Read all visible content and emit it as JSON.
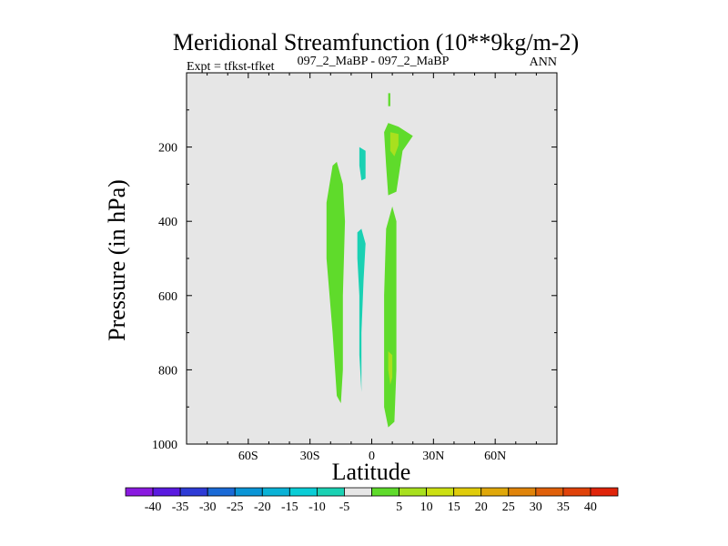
{
  "chart_data": {
    "type": "heatmap",
    "title": "Meridional Streamfunction (10**9kg/m-2)",
    "left_subtitle": "Expt = tfkst-tfket",
    "center_subtitle": "097_2_MaBP - 097_2_MaBP",
    "right_subtitle": "ANN",
    "xlabel": "Latitude",
    "ylabel": "Pressure (in hPa)",
    "xlim": [
      -90,
      90
    ],
    "ylim": [
      1000,
      0
    ],
    "x_ticks": [
      {
        "value": -60,
        "label": "60S"
      },
      {
        "value": -30,
        "label": "30S"
      },
      {
        "value": 0,
        "label": "0"
      },
      {
        "value": 30,
        "label": "30N"
      },
      {
        "value": 60,
        "label": "60N"
      }
    ],
    "y_ticks": [
      {
        "value": 200,
        "label": "200"
      },
      {
        "value": 400,
        "label": "400"
      },
      {
        "value": 600,
        "label": "600"
      },
      {
        "value": 800,
        "label": "800"
      },
      {
        "value": 1000,
        "label": "1000"
      }
    ],
    "background_color": "#e6e6e6",
    "regions": [
      {
        "level": 5,
        "color": "#5fdb2b",
        "points": [
          [
            -19,
            250
          ],
          [
            -17,
            240
          ],
          [
            -14,
            300
          ],
          [
            -13,
            400
          ],
          [
            -14,
            600
          ],
          [
            -14,
            800
          ],
          [
            -15,
            890
          ],
          [
            -17,
            870
          ],
          [
            -19,
            700
          ],
          [
            -22,
            500
          ],
          [
            -22,
            350
          ]
        ]
      },
      {
        "level": 5,
        "color": "#5fdb2b",
        "points": [
          [
            8,
            135
          ],
          [
            13,
            145
          ],
          [
            20,
            170
          ],
          [
            15,
            210
          ],
          [
            12,
            320
          ],
          [
            8,
            330
          ],
          [
            7,
            250
          ],
          [
            6,
            160
          ]
        ]
      },
      {
        "level": 5,
        "color": "#5fdb2b",
        "points": [
          [
            8,
            55
          ],
          [
            9,
            55
          ],
          [
            9,
            90
          ],
          [
            8,
            90
          ]
        ]
      },
      {
        "level": 5,
        "color": "#5fdb2b",
        "points": [
          [
            10,
            360
          ],
          [
            12,
            400
          ],
          [
            12,
            600
          ],
          [
            12,
            800
          ],
          [
            11,
            940
          ],
          [
            8,
            955
          ],
          [
            6,
            900
          ],
          [
            6,
            600
          ],
          [
            7,
            420
          ]
        ]
      },
      {
        "level": 10,
        "color": "#a8e01e",
        "points": [
          [
            9,
            160
          ],
          [
            13,
            165
          ],
          [
            13,
            195
          ],
          [
            11,
            225
          ],
          [
            9,
            210
          ]
        ]
      },
      {
        "level": 10,
        "color": "#a8e01e",
        "points": [
          [
            8,
            750
          ],
          [
            10,
            760
          ],
          [
            10,
            820
          ],
          [
            9,
            840
          ],
          [
            8,
            800
          ]
        ]
      },
      {
        "level": -5,
        "color": "#1ad1b3",
        "points": [
          [
            -6,
            200
          ],
          [
            -3,
            210
          ],
          [
            -3,
            285
          ],
          [
            -5,
            290
          ],
          [
            -6,
            250
          ]
        ]
      },
      {
        "level": -5,
        "color": "#1ad1b3",
        "points": [
          [
            -7,
            430
          ],
          [
            -5,
            420
          ],
          [
            -3,
            460
          ],
          [
            -4,
            560
          ],
          [
            -5,
            700
          ],
          [
            -5,
            860
          ],
          [
            -6,
            760
          ],
          [
            -6,
            600
          ],
          [
            -7,
            500
          ]
        ]
      }
    ],
    "colorbar": {
      "colors": [
        "#8a1ae0",
        "#5a1ae0",
        "#2e3bd6",
        "#1a6ad6",
        "#0a95d6",
        "#0ab2d6",
        "#0acdd6",
        "#1ad1b3",
        "#e6e6e6",
        "#5fdb2b",
        "#a8e01e",
        "#cce012",
        "#e0cc0a",
        "#e0a80a",
        "#e0840a",
        "#e0600a",
        "#e0420a",
        "#e0240a"
      ],
      "labels": [
        "-40",
        "-35",
        "-30",
        "-25",
        "-20",
        "-15",
        "-10",
        "-5",
        "5",
        "10",
        "15",
        "20",
        "25",
        "30",
        "35",
        "40"
      ]
    }
  }
}
